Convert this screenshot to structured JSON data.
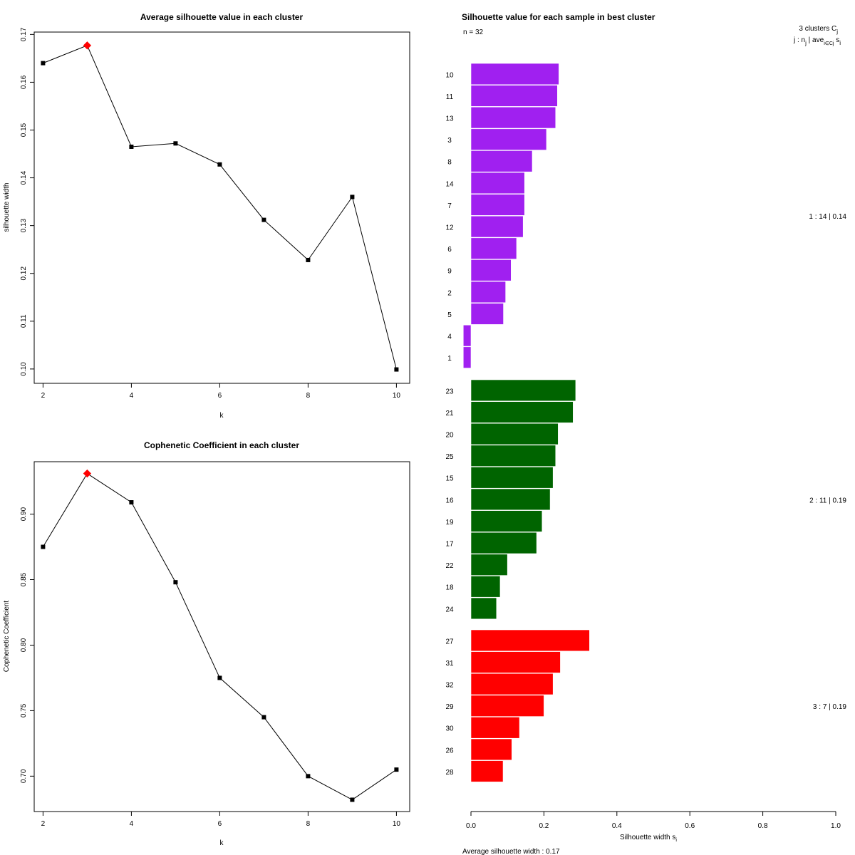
{
  "chart_data": [
    {
      "id": "silhouette_avg",
      "type": "line",
      "title": "Average silhouette value in each cluster",
      "xlabel": "k",
      "ylabel": "silhouette width",
      "x": [
        2,
        3,
        4,
        5,
        6,
        7,
        8,
        9,
        10
      ],
      "values": [
        0.164,
        0.1677,
        0.1465,
        0.1472,
        0.1428,
        0.1312,
        0.1228,
        0.136,
        0.0999
      ],
      "highlight_x": 3,
      "highlight_color": "#ff0000",
      "xticks": [
        "2",
        "4",
        "6",
        "8",
        "10"
      ],
      "yticks": [
        "0.10",
        "0.11",
        "0.12",
        "0.13",
        "0.14",
        "0.15",
        "0.16",
        "0.17"
      ],
      "xlim": [
        1.8,
        10.3
      ],
      "ylim": [
        0.097,
        0.1705
      ]
    },
    {
      "id": "cophenetic",
      "type": "line",
      "title": "Cophenetic Coefficient in each cluster",
      "xlabel": "k",
      "ylabel": "Cophenetic Coefficient",
      "x": [
        2,
        3,
        4,
        5,
        6,
        7,
        8,
        9,
        10
      ],
      "values": [
        0.875,
        0.931,
        0.909,
        0.848,
        0.775,
        0.745,
        0.7,
        0.682,
        0.705
      ],
      "highlight_x": 3,
      "highlight_color": "#ff0000",
      "xticks": [
        "2",
        "4",
        "6",
        "8",
        "10"
      ],
      "yticks": [
        "0.70",
        "0.75",
        "0.80",
        "0.85",
        "0.90"
      ],
      "xlim": [
        1.8,
        10.3
      ],
      "ylim": [
        0.673,
        0.94
      ]
    },
    {
      "id": "silhouette_samples",
      "type": "bar",
      "orientation": "horizontal",
      "title": "Silhouette value for each sample in best cluster",
      "n_label": "n = 32",
      "header_line1": "3  clusters  C",
      "header_line1_sub": "j",
      "header_line2": "j :  n",
      "header_line2_sub": "j",
      "header_line2_rest": " | ave",
      "header_line2_sub2": "i∈Cj",
      "header_line2_end": " s",
      "header_line2_sub3": "i",
      "xlabel": "Silhouette width s",
      "xlabel_sub": "i",
      "xlim": [
        0,
        1
      ],
      "xticks": [
        "0.0",
        "0.2",
        "0.4",
        "0.6",
        "0.8",
        "1.0"
      ],
      "footer": "Average silhouette width :  0.17",
      "clusters": [
        {
          "color": "#a020f0",
          "summary": "1 :   14  |  0.14",
          "labels": [
            "10",
            "11",
            "13",
            "3",
            "8",
            "14",
            "7",
            "12",
            "6",
            "9",
            "2",
            "5",
            "4",
            "1"
          ],
          "values": [
            0.241,
            0.237,
            0.232,
            0.207,
            0.168,
            0.147,
            0.147,
            0.143,
            0.125,
            0.11,
            0.095,
            0.089,
            -0.021,
            -0.021
          ]
        },
        {
          "color": "#006400",
          "summary": "2 :   11  |  0.19",
          "labels": [
            "23",
            "21",
            "20",
            "25",
            "15",
            "16",
            "19",
            "17",
            "22",
            "18",
            "24"
          ],
          "values": [
            0.287,
            0.28,
            0.239,
            0.232,
            0.225,
            0.217,
            0.195,
            0.18,
            0.1,
            0.08,
            0.07
          ]
        },
        {
          "color": "#ff0000",
          "summary": "3 :   7  |  0.19",
          "labels": [
            "27",
            "31",
            "32",
            "29",
            "30",
            "26",
            "28"
          ],
          "values": [
            0.325,
            0.245,
            0.225,
            0.2,
            0.133,
            0.112,
            0.088
          ]
        }
      ]
    }
  ]
}
